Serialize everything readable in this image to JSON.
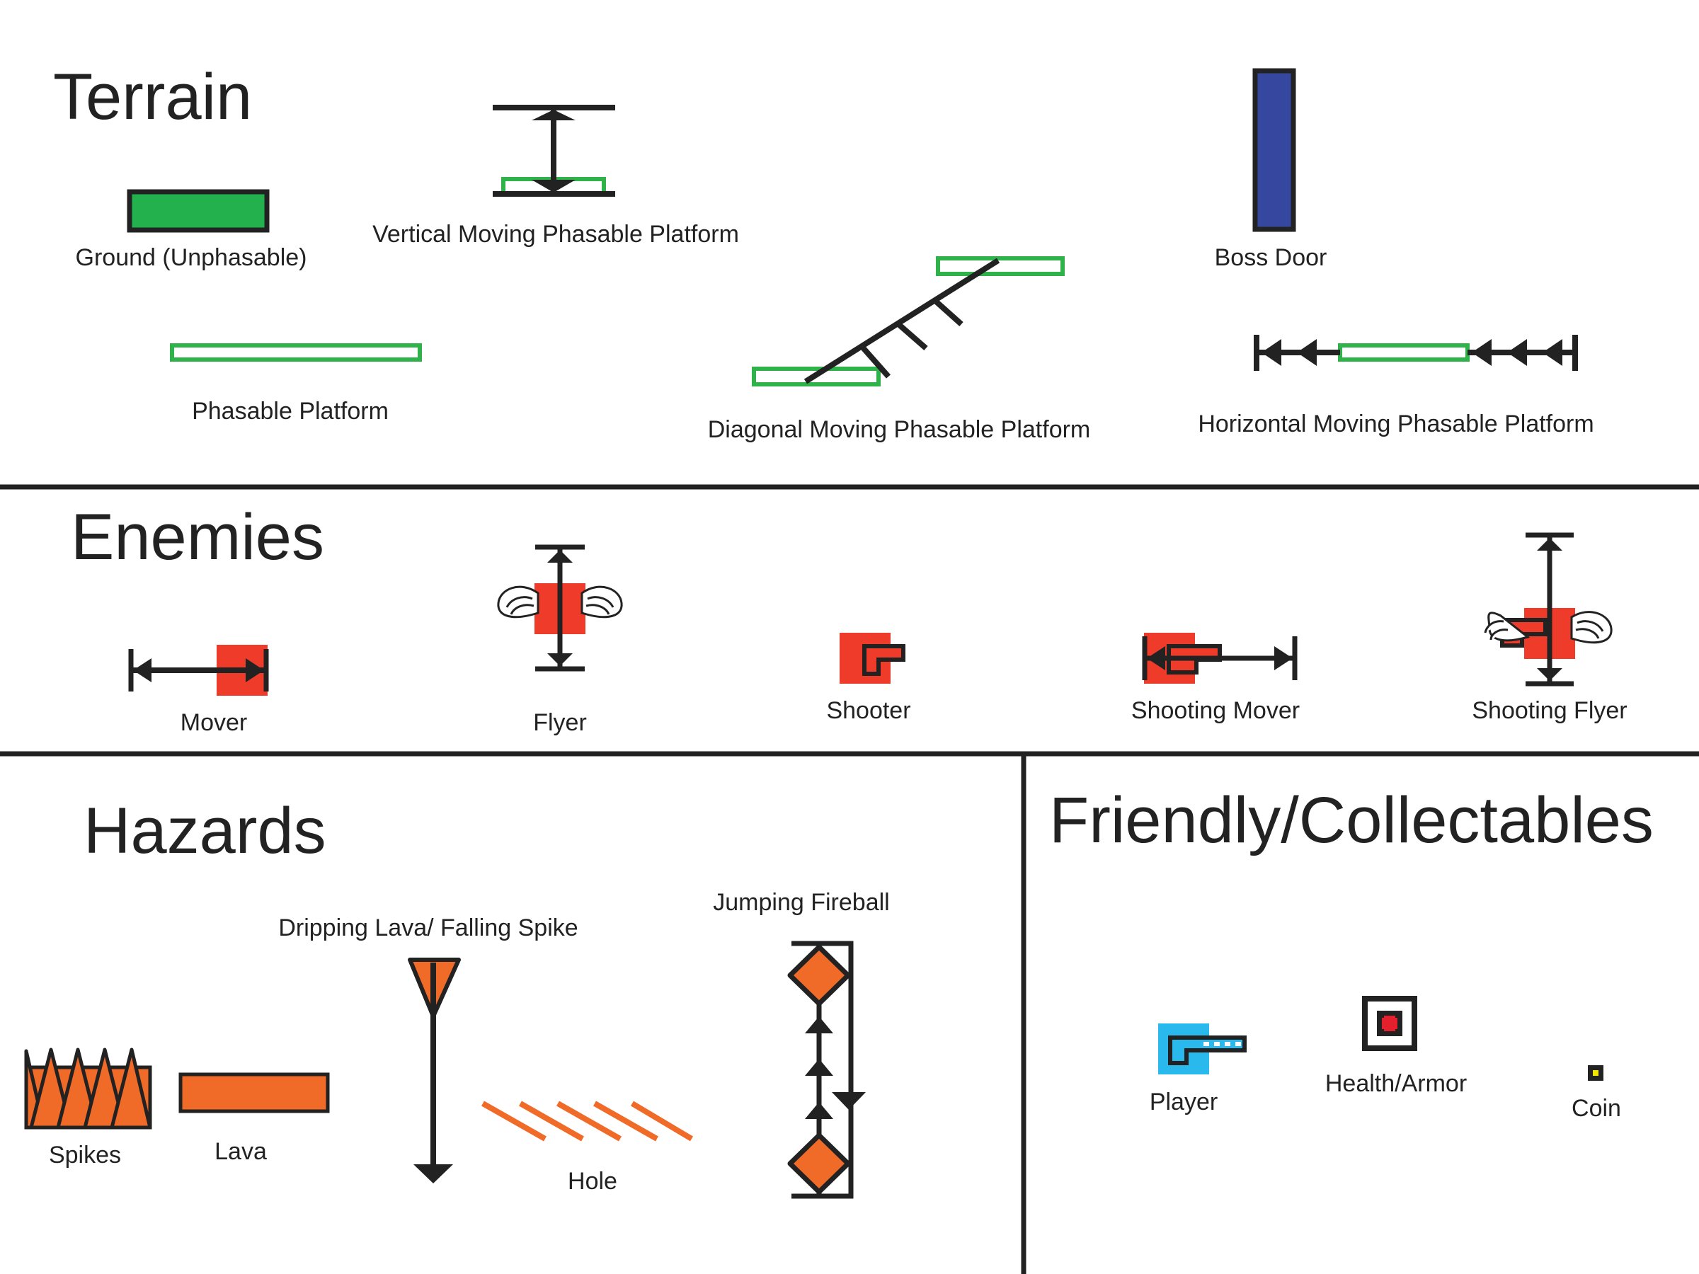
{
  "sections": {
    "terrain": {
      "heading": "Terrain",
      "items": {
        "ground": "Ground (Unphasable)",
        "vertical_platform": "Vertical Moving Phasable Platform",
        "phasable_platform": "Phasable Platform",
        "diagonal_platform": "Diagonal Moving Phasable Platform",
        "boss_door": "Boss Door",
        "horizontal_platform": "Horizontal Moving Phasable Platform"
      }
    },
    "enemies": {
      "heading": "Enemies",
      "items": {
        "mover": "Mover",
        "flyer": "Flyer",
        "shooter": "Shooter",
        "shooting_mover": "Shooting Mover",
        "shooting_flyer": "Shooting Flyer"
      }
    },
    "hazards": {
      "heading": "Hazards",
      "items": {
        "spikes": "Spikes",
        "lava": "Lava",
        "dripping_lava": "Dripping Lava/ Falling Spike",
        "hole": "Hole",
        "jumping_fireball": "Jumping Fireball"
      }
    },
    "friendly": {
      "heading": "Friendly/Collectables",
      "items": {
        "player": "Player",
        "health": "Health/Armor",
        "coin": "Coin"
      }
    }
  },
  "colors": {
    "ink": "#222222",
    "ground_fill": "#22b14c",
    "platform_outline": "#2fb24a",
    "boss_door": "#3647a0",
    "enemy": "#ef3b2a",
    "hazard": "#f06a28",
    "player": "#29b9ec",
    "health_cross": "#e3202b",
    "coin": "#f2e500"
  }
}
